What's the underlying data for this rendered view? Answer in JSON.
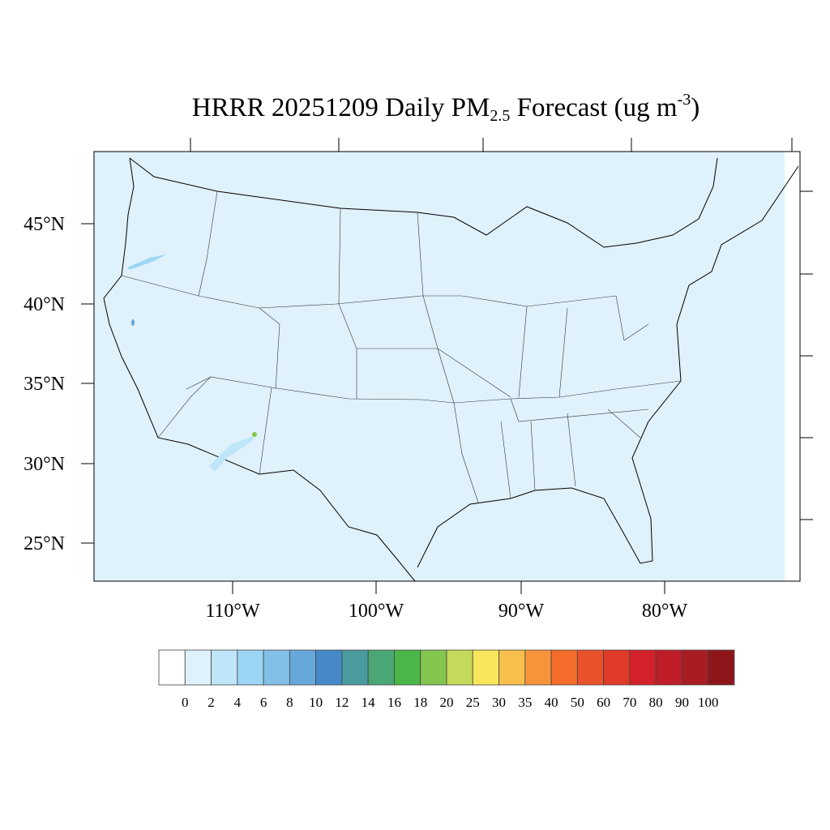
{
  "title": {
    "main": "HRRR 20251209 Daily PM",
    "sub": "2.5",
    "rest": " Forecast (ug m",
    "sup": "-3",
    "close": ")"
  },
  "map": {
    "background_color": "#dff1fb",
    "lat_labels": [
      "45°N",
      "40°N",
      "35°N",
      "30°N",
      "25°N"
    ],
    "lon_labels": [
      "110°W",
      "100°W",
      "90°W",
      "80°W"
    ]
  },
  "colorbar": {
    "labels": [
      "0",
      "2",
      "4",
      "6",
      "8",
      "10",
      "12",
      "14",
      "16",
      "18",
      "20",
      "25",
      "30",
      "35",
      "40",
      "50",
      "60",
      "70",
      "80",
      "90",
      "100"
    ],
    "colors": [
      "#ffffff",
      "#dff1fb",
      "#bfe6f8",
      "#9dd6f4",
      "#82c0e8",
      "#66a8da",
      "#4689c8",
      "#4a9b9e",
      "#4aa775",
      "#4bb548",
      "#84c54e",
      "#c5d95a",
      "#f9e65d",
      "#f8bf4c",
      "#f7943b",
      "#f46b2a",
      "#e9522a",
      "#e03a28",
      "#d5212a",
      "#bf1d27",
      "#a91c22",
      "#8e161b"
    ]
  }
}
